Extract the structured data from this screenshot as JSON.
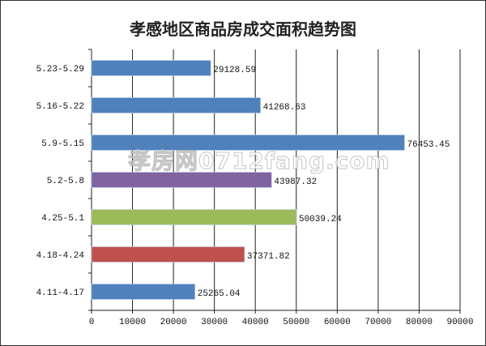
{
  "chart_data": {
    "type": "bar",
    "orientation": "horizontal",
    "title": "孝感地区商品房成交面积趋势图",
    "categories": [
      "4.11-4.17",
      "4.18-4.24",
      "4.25-5.1",
      "5.2-5.8",
      "5.9-5.15",
      "5.16-5.22",
      "5.23-5.29"
    ],
    "values": [
      25265.04,
      37371.82,
      50039.24,
      43987.32,
      76453.45,
      41268.63,
      29128.59
    ],
    "value_labels": [
      "25265.04",
      "37371.82",
      "50039.24",
      "43987.32",
      "76453.45",
      "41268.63",
      "29128.59"
    ],
    "colors": [
      "#4f81bd",
      "#c0504d",
      "#9bbb59",
      "#8064a2",
      "#4f81bd",
      "#4f81bd",
      "#4f81bd"
    ],
    "xlim": [
      0,
      90000
    ],
    "xticks": [
      "0",
      "10000",
      "20000",
      "30000",
      "40000",
      "50000",
      "60000",
      "70000",
      "80000",
      "90000"
    ],
    "xlabel": "",
    "ylabel": "",
    "grid": "vertical",
    "legend": "none"
  },
  "watermark": "孝房网0712fang.com"
}
